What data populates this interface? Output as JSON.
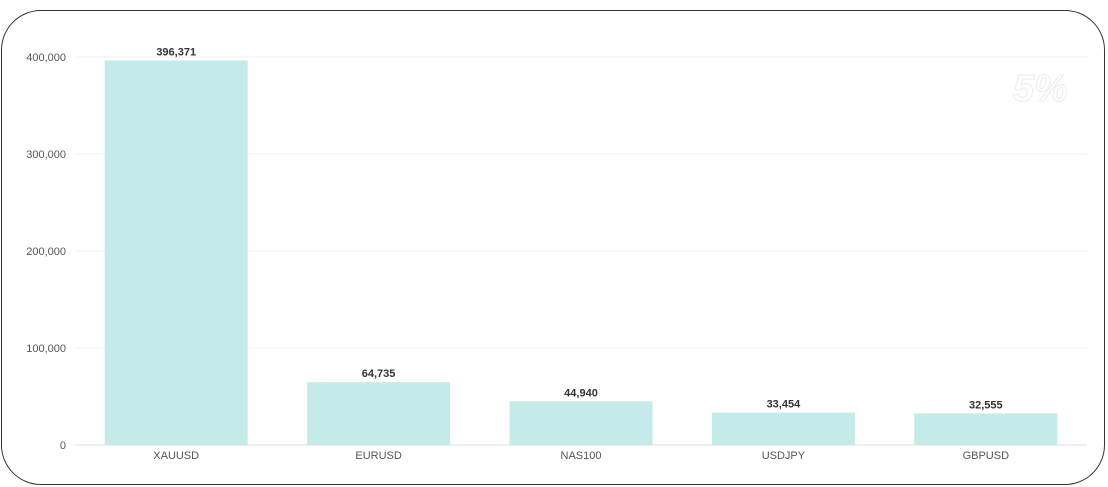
{
  "chart_data": {
    "type": "bar",
    "categories": [
      "XAUUSD",
      "EURUSD",
      "NAS100",
      "USDJPY",
      "GBPUSD"
    ],
    "values": [
      396371,
      64735,
      44940,
      33454,
      32555
    ],
    "data_labels": [
      "396,371",
      "64,735",
      "44,940",
      "33,454",
      "32,555"
    ],
    "yticks": [
      "0",
      "100,000",
      "200,000",
      "300,000",
      "400,000"
    ],
    "ylim": [
      0,
      400000
    ],
    "grid": true,
    "bar_color": "#c5eaea",
    "title": "",
    "xlabel": "",
    "ylabel": ""
  },
  "watermark": "5%"
}
